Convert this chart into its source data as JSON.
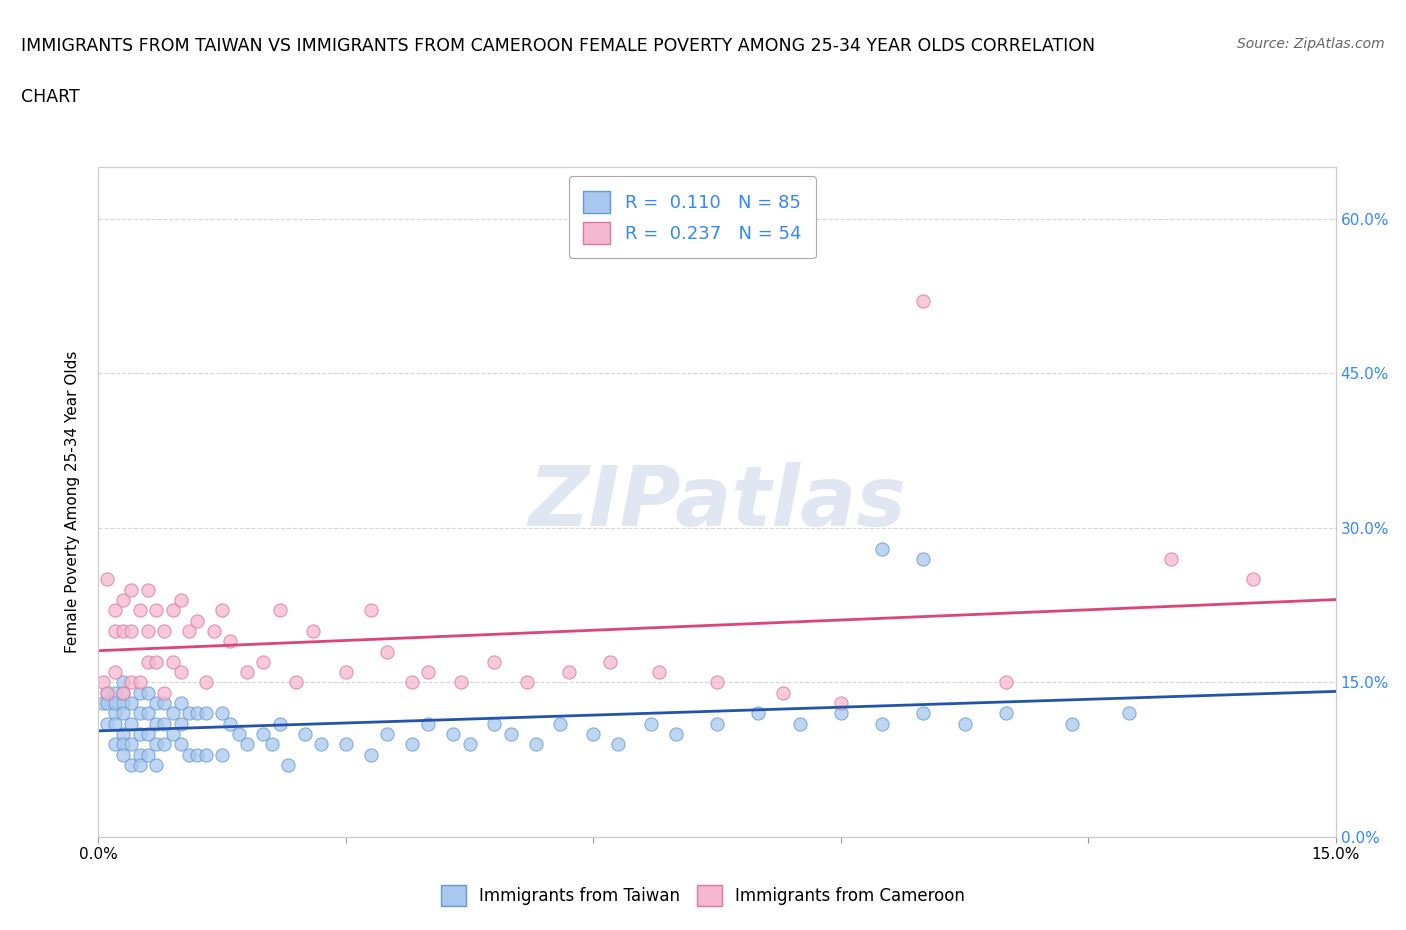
{
  "title_line1": "IMMIGRANTS FROM TAIWAN VS IMMIGRANTS FROM CAMEROON FEMALE POVERTY AMONG 25-34 YEAR OLDS CORRELATION",
  "title_line2": "CHART",
  "source": "Source: ZipAtlas.com",
  "ylabel": "Female Poverty Among 25-34 Year Olds",
  "xlim": [
    0.0,
    0.15
  ],
  "ylim": [
    0.0,
    0.65
  ],
  "x_ticks": [
    0.0,
    0.03,
    0.06,
    0.09,
    0.12,
    0.15
  ],
  "x_tick_labels": [
    "0.0%",
    "",
    "",
    "",
    "",
    "15.0%"
  ],
  "y_ticks": [
    0.0,
    0.15,
    0.3,
    0.45,
    0.6
  ],
  "y_tick_labels_right": [
    "0.0%",
    "15.0%",
    "30.0%",
    "45.0%",
    "60.0%"
  ],
  "taiwan_color": "#a8c8f0",
  "taiwan_edge": "#6699cc",
  "cameroon_color": "#f5b8d0",
  "cameroon_edge": "#dd7799",
  "taiwan_line_color": "#2255aa",
  "cameroon_line_color": "#dd4477",
  "R_taiwan": 0.11,
  "N_taiwan": 85,
  "R_cameroon": 0.237,
  "N_cameroon": 54,
  "watermark": "ZIPatlas",
  "grid_color": "#cccccc",
  "taiwan_x": [
    0.0005,
    0.001,
    0.001,
    0.001,
    0.002,
    0.002,
    0.002,
    0.002,
    0.002,
    0.003,
    0.003,
    0.003,
    0.003,
    0.003,
    0.003,
    0.003,
    0.004,
    0.004,
    0.004,
    0.004,
    0.005,
    0.005,
    0.005,
    0.005,
    0.005,
    0.006,
    0.006,
    0.006,
    0.006,
    0.007,
    0.007,
    0.007,
    0.007,
    0.008,
    0.008,
    0.008,
    0.009,
    0.009,
    0.01,
    0.01,
    0.01,
    0.011,
    0.011,
    0.012,
    0.012,
    0.013,
    0.013,
    0.015,
    0.015,
    0.016,
    0.017,
    0.018,
    0.02,
    0.021,
    0.022,
    0.023,
    0.025,
    0.027,
    0.03,
    0.033,
    0.035,
    0.038,
    0.04,
    0.043,
    0.045,
    0.048,
    0.05,
    0.053,
    0.056,
    0.06,
    0.063,
    0.067,
    0.07,
    0.075,
    0.08,
    0.085,
    0.09,
    0.095,
    0.1,
    0.105,
    0.11,
    0.118,
    0.125,
    0.095,
    0.1
  ],
  "taiwan_y": [
    0.13,
    0.14,
    0.13,
    0.11,
    0.14,
    0.12,
    0.11,
    0.13,
    0.09,
    0.15,
    0.13,
    0.12,
    0.1,
    0.14,
    0.09,
    0.08,
    0.13,
    0.11,
    0.09,
    0.07,
    0.14,
    0.12,
    0.1,
    0.08,
    0.07,
    0.14,
    0.12,
    0.1,
    0.08,
    0.13,
    0.11,
    0.09,
    0.07,
    0.13,
    0.11,
    0.09,
    0.12,
    0.1,
    0.13,
    0.11,
    0.09,
    0.12,
    0.08,
    0.12,
    0.08,
    0.12,
    0.08,
    0.12,
    0.08,
    0.11,
    0.1,
    0.09,
    0.1,
    0.09,
    0.11,
    0.07,
    0.1,
    0.09,
    0.09,
    0.08,
    0.1,
    0.09,
    0.11,
    0.1,
    0.09,
    0.11,
    0.1,
    0.09,
    0.11,
    0.1,
    0.09,
    0.11,
    0.1,
    0.11,
    0.12,
    0.11,
    0.12,
    0.11,
    0.12,
    0.11,
    0.12,
    0.11,
    0.12,
    0.28,
    0.27
  ],
  "cameroon_x": [
    0.0005,
    0.001,
    0.001,
    0.002,
    0.002,
    0.002,
    0.003,
    0.003,
    0.003,
    0.004,
    0.004,
    0.004,
    0.005,
    0.005,
    0.006,
    0.006,
    0.006,
    0.007,
    0.007,
    0.008,
    0.008,
    0.009,
    0.009,
    0.01,
    0.01,
    0.011,
    0.012,
    0.013,
    0.014,
    0.015,
    0.016,
    0.018,
    0.02,
    0.022,
    0.024,
    0.026,
    0.03,
    0.033,
    0.035,
    0.038,
    0.04,
    0.044,
    0.048,
    0.052,
    0.057,
    0.062,
    0.068,
    0.075,
    0.083,
    0.09,
    0.1,
    0.11,
    0.13,
    0.14
  ],
  "cameroon_y": [
    0.15,
    0.25,
    0.14,
    0.22,
    0.2,
    0.16,
    0.23,
    0.2,
    0.14,
    0.24,
    0.2,
    0.15,
    0.22,
    0.15,
    0.24,
    0.2,
    0.17,
    0.22,
    0.17,
    0.2,
    0.14,
    0.22,
    0.17,
    0.23,
    0.16,
    0.2,
    0.21,
    0.15,
    0.2,
    0.22,
    0.19,
    0.16,
    0.17,
    0.22,
    0.15,
    0.2,
    0.16,
    0.22,
    0.18,
    0.15,
    0.16,
    0.15,
    0.17,
    0.15,
    0.16,
    0.17,
    0.16,
    0.15,
    0.14,
    0.13,
    0.52,
    0.15,
    0.27,
    0.25
  ]
}
